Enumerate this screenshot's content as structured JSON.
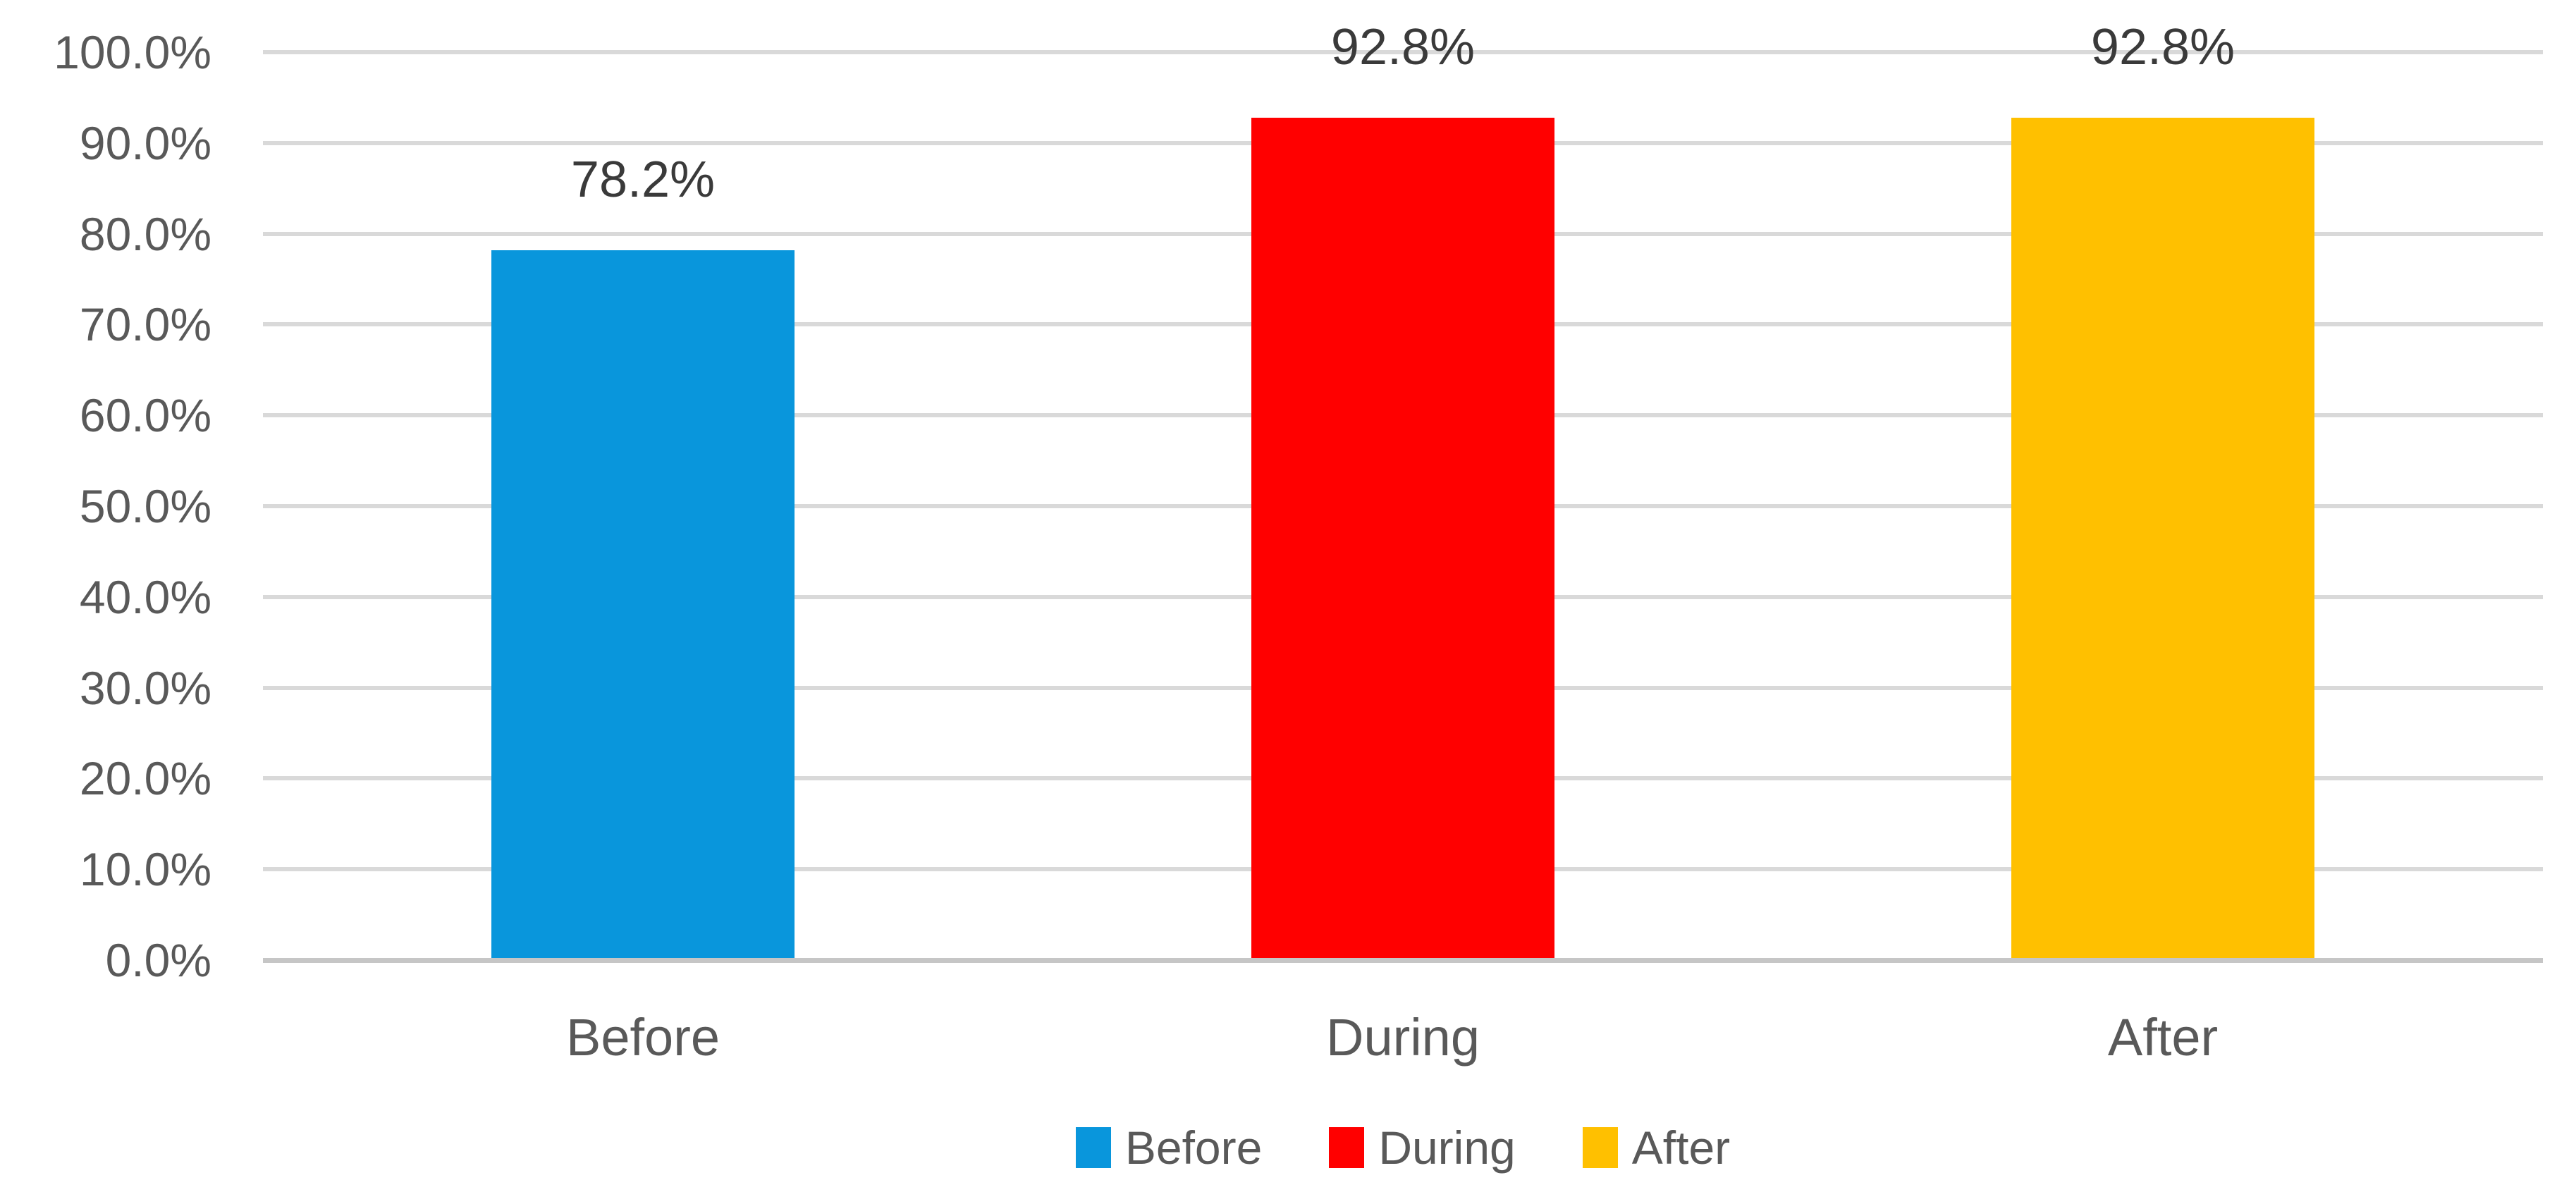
{
  "chart_data": {
    "type": "bar",
    "title": "",
    "xlabel": "",
    "ylabel": "",
    "categories": [
      "Before",
      "During",
      "After"
    ],
    "values": [
      78.2,
      92.8,
      92.8
    ],
    "data_labels": [
      "78.2%",
      "92.8%",
      "92.8%"
    ],
    "bar_colors": [
      "#0996DC",
      "#FF0000",
      "#FFC000"
    ],
    "ylim": [
      0,
      100
    ],
    "ytick_step": 10,
    "ytick_labels": [
      "0.0%",
      "10.0%",
      "20.0%",
      "30.0%",
      "40.0%",
      "50.0%",
      "60.0%",
      "70.0%",
      "80.0%",
      "90.0%",
      "100.0%"
    ],
    "grid": true,
    "gridline_color": "#D9D9D9",
    "axis_line_color": "#C6C6C6",
    "tick_label_color": "#595959",
    "category_label_color": "#595959",
    "data_label_color": "#3A3A3A",
    "legend": {
      "position": "bottom",
      "entries": [
        {
          "label": "Before",
          "color": "#0996DC"
        },
        {
          "label": "During",
          "color": "#FF0000"
        },
        {
          "label": "After",
          "color": "#FFC000"
        }
      ],
      "label_color": "#595959"
    }
  }
}
